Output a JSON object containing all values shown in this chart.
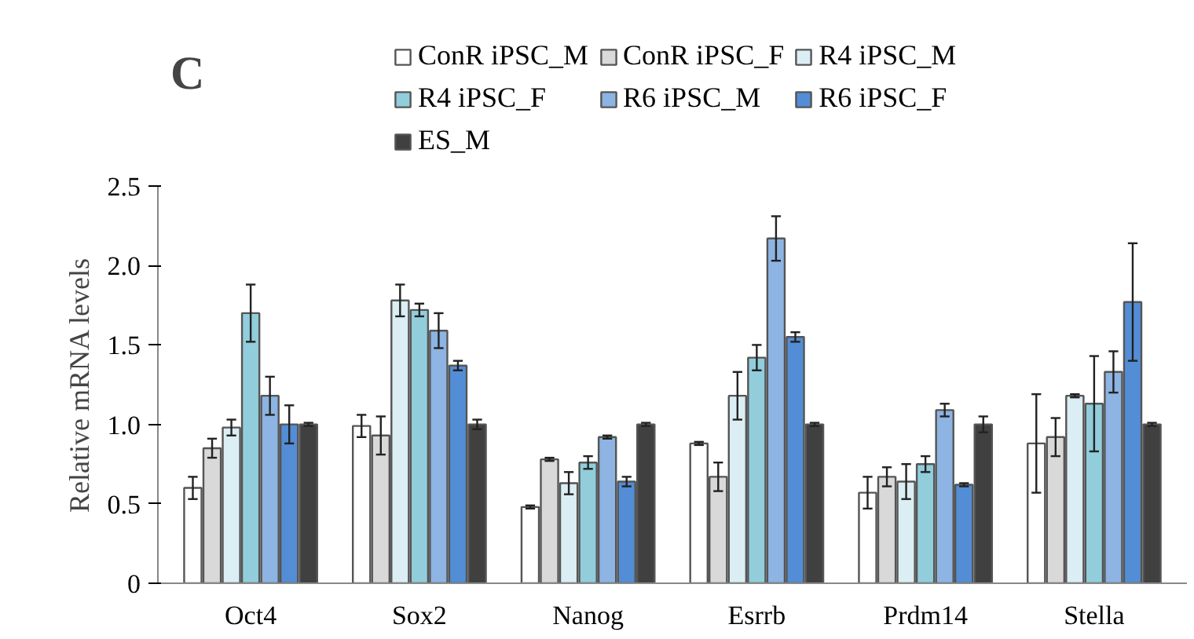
{
  "chart_data": {
    "type": "bar",
    "ylabel": "Relative mRNA levels",
    "annotations": [
      "C"
    ],
    "categories": [
      "Oct4",
      "Sox2",
      "Nanog",
      "Esrrb",
      "Prdm14",
      "Stella"
    ],
    "ylim": [
      0,
      2.5
    ],
    "yticks": [
      0,
      0.5,
      {
        "value": 1,
        "label": "1.0"
      },
      1.5,
      {
        "value": 2,
        "label": "2.0"
      },
      2.5
    ],
    "grid": false,
    "legend": "top",
    "series": [
      {
        "name": "ConR iPSC_M",
        "color": "#ffffff",
        "values": [
          0.6,
          0.99,
          0.48,
          0.88,
          0.57,
          0.88
        ],
        "errors": [
          0.07,
          0.07,
          0.01,
          0.01,
          0.1,
          0.31
        ]
      },
      {
        "name": "ConR iPSC_F",
        "color": "#d9d9d9",
        "values": [
          0.85,
          0.93,
          0.78,
          0.67,
          0.67,
          0.92
        ],
        "errors": [
          0.06,
          0.12,
          0.01,
          0.09,
          0.06,
          0.12
        ]
      },
      {
        "name": "R4 iPSC_M",
        "color": "#dbeef4",
        "values": [
          0.98,
          1.78,
          0.63,
          1.18,
          0.64,
          1.18
        ],
        "errors": [
          0.05,
          0.1,
          0.07,
          0.15,
          0.11,
          0.01
        ]
      },
      {
        "name": "R4 iPSC_F",
        "color": "#92cddc",
        "values": [
          1.7,
          1.72,
          0.76,
          1.42,
          0.75,
          1.13
        ],
        "errors": [
          0.18,
          0.04,
          0.04,
          0.08,
          0.05,
          0.3
        ]
      },
      {
        "name": "R6 iPSC_M",
        "color": "#8db4e2",
        "values": [
          1.18,
          1.59,
          0.92,
          2.17,
          1.09,
          1.33
        ],
        "errors": [
          0.12,
          0.11,
          0.01,
          0.14,
          0.04,
          0.13
        ]
      },
      {
        "name": "R6 iPSC_F",
        "color": "#538dd5",
        "values": [
          1.0,
          1.37,
          0.64,
          1.55,
          0.62,
          1.77
        ],
        "errors": [
          0.12,
          0.03,
          0.03,
          0.03,
          0.01,
          0.37
        ]
      },
      {
        "name": "ES_M",
        "color": "#404040",
        "values": [
          1.0,
          1.0,
          1.0,
          1.0,
          1.0,
          1.0
        ],
        "errors": [
          0.01,
          0.03,
          0.01,
          0.01,
          0.05,
          0.01
        ]
      }
    ]
  }
}
